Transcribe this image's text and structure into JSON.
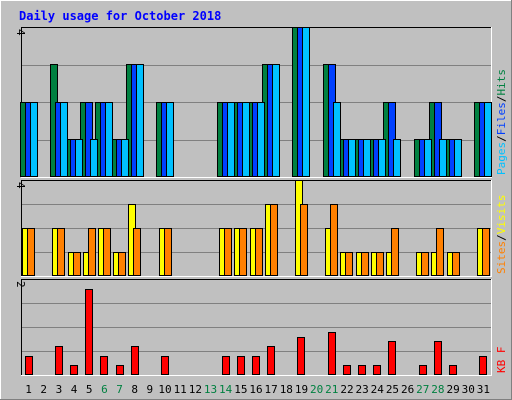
{
  "chart_data": {
    "type": "bar",
    "title": "Daily usage for October 2018",
    "colors": {
      "background": "#c0c0c0",
      "hits": "#008040",
      "files": "#0040ff",
      "pages": "#00c0ff",
      "visits": "#ffff00",
      "sites": "#ff8000",
      "kbytes": "#ff0000",
      "weekend": "#008040",
      "weekday": "#000000",
      "title": "#0000ff",
      "grid": "#808080"
    },
    "days": [
      {
        "label": "1",
        "weekend": false
      },
      {
        "label": "2",
        "weekend": false
      },
      {
        "label": "3",
        "weekend": false
      },
      {
        "label": "4",
        "weekend": false
      },
      {
        "label": "5",
        "weekend": false
      },
      {
        "label": "6",
        "weekend": true
      },
      {
        "label": "7",
        "weekend": true
      },
      {
        "label": "8",
        "weekend": false
      },
      {
        "label": "9",
        "weekend": false
      },
      {
        "label": "10",
        "weekend": false
      },
      {
        "label": "11",
        "weekend": false
      },
      {
        "label": "12",
        "weekend": false
      },
      {
        "label": "13",
        "weekend": true
      },
      {
        "label": "14",
        "weekend": true
      },
      {
        "label": "15",
        "weekend": false
      },
      {
        "label": "16",
        "weekend": false
      },
      {
        "label": "17",
        "weekend": false
      },
      {
        "label": "18",
        "weekend": false
      },
      {
        "label": "19",
        "weekend": false
      },
      {
        "label": "20",
        "weekend": true
      },
      {
        "label": "21",
        "weekend": true
      },
      {
        "label": "22",
        "weekend": false
      },
      {
        "label": "23",
        "weekend": false
      },
      {
        "label": "24",
        "weekend": false
      },
      {
        "label": "25",
        "weekend": false
      },
      {
        "label": "26",
        "weekend": false
      },
      {
        "label": "27",
        "weekend": true
      },
      {
        "label": "28",
        "weekend": true
      },
      {
        "label": "29",
        "weekend": false
      },
      {
        "label": "30",
        "weekend": false
      },
      {
        "label": "31",
        "weekend": false
      }
    ],
    "panels": [
      {
        "id": "hits",
        "ymax": 4,
        "max_label": "4",
        "axis_labels": [
          {
            "text": "Pages",
            "color": "#00c0ff"
          },
          {
            "text": "/",
            "color": "#000000"
          },
          {
            "text": "Files",
            "color": "#0040ff"
          },
          {
            "text": "/",
            "color": "#000000"
          },
          {
            "text": "Hits",
            "color": "#008040"
          }
        ],
        "series": [
          {
            "name": "Hits",
            "color": "#008040",
            "values": [
              2,
              0,
              3,
              1,
              2,
              2,
              1,
              3,
              0,
              2,
              0,
              0,
              0,
              2,
              2,
              2,
              3,
              0,
              4,
              0,
              3,
              1,
              1,
              1,
              2,
              0,
              1,
              2,
              1,
              0,
              2
            ]
          },
          {
            "name": "Files",
            "color": "#0040ff",
            "values": [
              2,
              0,
              2,
              1,
              2,
              2,
              1,
              3,
              0,
              2,
              0,
              0,
              0,
              2,
              2,
              2,
              3,
              0,
              4,
              0,
              3,
              1,
              1,
              1,
              2,
              0,
              1,
              2,
              1,
              0,
              2
            ]
          },
          {
            "name": "Pages",
            "color": "#00c0ff",
            "values": [
              2,
              0,
              2,
              1,
              1,
              2,
              1,
              3,
              0,
              2,
              0,
              0,
              0,
              2,
              2,
              2,
              3,
              0,
              4,
              0,
              2,
              1,
              1,
              1,
              1,
              0,
              1,
              1,
              1,
              0,
              2
            ]
          }
        ]
      },
      {
        "id": "visits",
        "ymax": 4,
        "max_label": "4",
        "axis_labels": [
          {
            "text": "Sites",
            "color": "#ff8000"
          },
          {
            "text": "/",
            "color": "#000000"
          },
          {
            "text": "Visits",
            "color": "#ffff00"
          }
        ],
        "series": [
          {
            "name": "Visits",
            "color": "#ffff00",
            "values": [
              2,
              0,
              2,
              1,
              1,
              2,
              1,
              3,
              0,
              2,
              0,
              0,
              0,
              2,
              2,
              2,
              3,
              0,
              4,
              0,
              2,
              1,
              1,
              1,
              1,
              0,
              1,
              1,
              1,
              0,
              2
            ]
          },
          {
            "name": "Sites",
            "color": "#ff8000",
            "values": [
              2,
              0,
              2,
              1,
              2,
              2,
              1,
              2,
              0,
              2,
              0,
              0,
              0,
              2,
              2,
              2,
              3,
              0,
              3,
              0,
              3,
              1,
              1,
              1,
              2,
              0,
              1,
              2,
              1,
              0,
              2
            ]
          }
        ]
      },
      {
        "id": "kbytes",
        "ymax": 2,
        "max_label": "2",
        "axis_labels": [
          {
            "text": "KB F",
            "color": "#ff0000"
          }
        ],
        "series": [
          {
            "name": "KB F",
            "color": "#ff0000",
            "values": [
              0.4,
              0,
              0.6,
              0.2,
              1.8,
              0.4,
              0.2,
              0.6,
              0,
              0.4,
              0,
              0,
              0,
              0.4,
              0.4,
              0.4,
              0.6,
              0,
              0.8,
              0,
              0.9,
              0.2,
              0.2,
              0.2,
              0.7,
              0,
              0.2,
              0.7,
              0.2,
              0,
              0.4
            ]
          }
        ]
      }
    ]
  }
}
